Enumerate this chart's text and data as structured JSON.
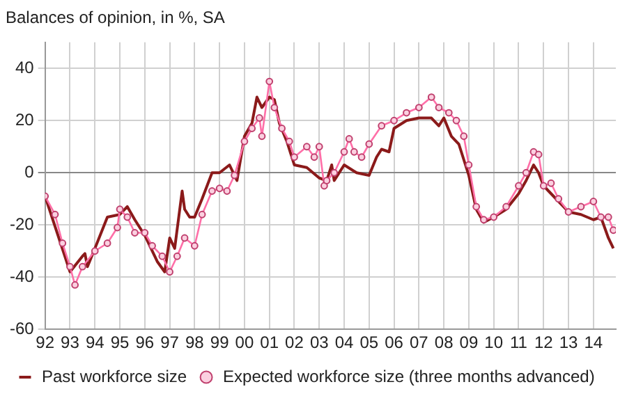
{
  "chart_data": {
    "type": "line",
    "title": "Balances of opinion, in %, SA",
    "xlim": [
      1992,
      2014.9
    ],
    "xticks": [
      {
        "value": 1992,
        "label": "92"
      },
      {
        "value": 1993,
        "label": "93"
      },
      {
        "value": 1994,
        "label": "94"
      },
      {
        "value": 1995,
        "label": "95"
      },
      {
        "value": 1996,
        "label": "96"
      },
      {
        "value": 1997,
        "label": "97"
      },
      {
        "value": 1998,
        "label": "98"
      },
      {
        "value": 1999,
        "label": "99"
      },
      {
        "value": 2000,
        "label": "00"
      },
      {
        "value": 2001,
        "label": "01"
      },
      {
        "value": 2002,
        "label": "02"
      },
      {
        "value": 2003,
        "label": "03"
      },
      {
        "value": 2004,
        "label": "04"
      },
      {
        "value": 2005,
        "label": "05"
      },
      {
        "value": 2006,
        "label": "06"
      },
      {
        "value": 2007,
        "label": "07"
      },
      {
        "value": 2008,
        "label": "08"
      },
      {
        "value": 2009,
        "label": "09"
      },
      {
        "value": 2010,
        "label": "10"
      },
      {
        "value": 2011,
        "label": "11"
      },
      {
        "value": 2012,
        "label": "12"
      },
      {
        "value": 2013,
        "label": "13"
      },
      {
        "value": 2014,
        "label": "14"
      }
    ],
    "ylim": [
      -60,
      50
    ],
    "yticks": [
      -60,
      -40,
      -20,
      0,
      20,
      40
    ],
    "grid": true,
    "legend": "bottom",
    "series": [
      {
        "name": "Past workforce size",
        "color": "#8b1a1a",
        "marker": "none",
        "x": [
          1992.0,
          1993.0,
          1993.5,
          1993.6,
          1993.7,
          1994.0,
          1994.5,
          1995.0,
          1995.3,
          1995.6,
          1996.0,
          1996.5,
          1996.8,
          1997.0,
          1997.2,
          1997.5,
          1997.6,
          1997.8,
          1998.0,
          1998.3,
          1998.7,
          1999.0,
          1999.4,
          1999.7,
          2000.0,
          2000.3,
          2000.5,
          2000.7,
          2001.0,
          2001.2,
          2001.4,
          2001.7,
          2002.0,
          2002.5,
          2003.0,
          2003.3,
          2003.5,
          2003.6,
          2004.0,
          2004.5,
          2005.0,
          2005.3,
          2005.5,
          2005.8,
          2006.0,
          2006.5,
          2007.0,
          2007.5,
          2007.8,
          2008.0,
          2008.3,
          2008.6,
          2009.0,
          2009.3,
          2009.6,
          2010.0,
          2010.5,
          2011.0,
          2011.3,
          2011.6,
          2011.8,
          2012.0,
          2012.5,
          2013.0,
          2013.5,
          2014.0,
          2014.3,
          2014.6,
          2014.8
        ],
        "values": [
          -9,
          -38,
          -32,
          -31,
          -36,
          -29,
          -17,
          -16,
          -13,
          -18,
          -24,
          -34,
          -38,
          -25,
          -29,
          -7,
          -14,
          -17,
          -17,
          -10,
          0,
          0,
          3,
          -3,
          14,
          19,
          29,
          25,
          29,
          28,
          19,
          12,
          3,
          2,
          -2,
          -3,
          3,
          -3,
          3,
          0,
          -1,
          6,
          9,
          8,
          17,
          20,
          21,
          21,
          18,
          21,
          14,
          11,
          -1,
          -14,
          -19,
          -17,
          -14,
          -8,
          -3,
          3,
          0,
          -5,
          -10,
          -15,
          -16,
          -18,
          -17,
          -25,
          -29
        ]
      },
      {
        "name": "Expected workforce size (three months advanced)",
        "color": "#ff6fa8",
        "marker": "circle",
        "x": [
          1992.0,
          1992.4,
          1992.7,
          1993.0,
          1993.2,
          1993.5,
          1994.0,
          1994.5,
          1994.9,
          1995.0,
          1995.3,
          1995.6,
          1996.0,
          1996.3,
          1996.7,
          1997.0,
          1997.3,
          1997.6,
          1998.0,
          1998.3,
          1998.7,
          1999.0,
          1999.3,
          1999.6,
          2000.0,
          2000.3,
          2000.6,
          2000.7,
          2001.0,
          2001.2,
          2001.5,
          2001.8,
          2002.0,
          2002.5,
          2002.8,
          2003.0,
          2003.2,
          2003.3,
          2003.6,
          2004.0,
          2004.2,
          2004.4,
          2004.7,
          2005.0,
          2005.5,
          2006.0,
          2006.5,
          2007.0,
          2007.5,
          2007.8,
          2008.2,
          2008.5,
          2008.8,
          2009.0,
          2009.3,
          2009.6,
          2010.0,
          2010.5,
          2011.0,
          2011.3,
          2011.6,
          2011.8,
          2012.0,
          2012.3,
          2012.6,
          2013.0,
          2013.5,
          2014.0,
          2014.3,
          2014.6,
          2014.8
        ],
        "values": [
          -9,
          -16,
          -27,
          -36,
          -43,
          -36,
          -30,
          -27,
          -21,
          -14,
          -17,
          -23,
          -23,
          -28,
          -32,
          -38,
          -32,
          -25,
          -28,
          -16,
          -7,
          -6,
          -7,
          -1,
          12,
          17,
          21,
          14,
          35,
          25,
          17,
          12,
          6,
          10,
          6,
          10,
          -5,
          -3,
          0,
          8,
          13,
          8,
          6,
          11,
          18,
          20,
          23,
          25,
          29,
          25,
          23,
          20,
          14,
          3,
          -13,
          -18,
          -17,
          -13,
          -5,
          0,
          8,
          7,
          -5,
          -4,
          -10,
          -15,
          -13,
          -11,
          -17,
          -17,
          -22
        ]
      }
    ]
  }
}
